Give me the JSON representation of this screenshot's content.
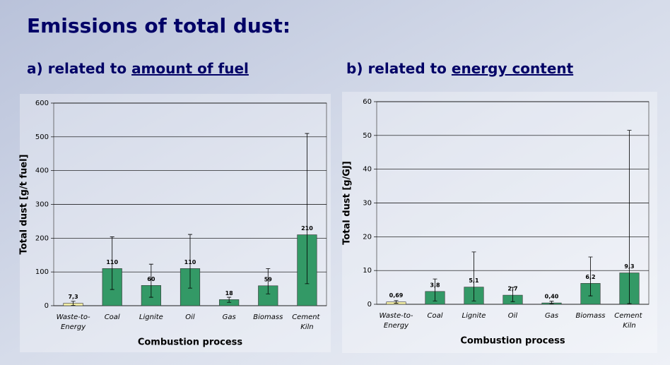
{
  "title": "Emissions of total dust:",
  "chart_data": [
    {
      "type": "bar",
      "label": "a)",
      "title": "related to",
      "title_underlined": "amount of fuel",
      "x_label": "Combustion process",
      "y_label": "Total dust [g/t fuel]",
      "categories": [
        "Waste-to-Energy",
        "Coal",
        "Lignite",
        "Oil",
        "Gas",
        "Biomass",
        "Cement Kiln"
      ],
      "series": [
        {
          "values": [
            7.3,
            110,
            60,
            110,
            18,
            59,
            210
          ],
          "value_labels": [
            "7,3",
            "110",
            "60",
            "110",
            "18",
            "59",
            "210"
          ],
          "colors": [
            "#f4f0a6",
            "#339966",
            "#339966",
            "#339966",
            "#339966",
            "#339966",
            "#339966"
          ],
          "error_low": [
            1,
            48,
            25,
            52,
            10,
            35,
            65
          ],
          "error_high": [
            13,
            204,
            123,
            211,
            25,
            110,
            510
          ]
        }
      ],
      "ylim": [
        0,
        600
      ],
      "yticks": [
        0,
        100,
        200,
        300,
        400,
        500,
        600
      ],
      "grid": true
    },
    {
      "type": "bar",
      "label": "b)",
      "title": "related to",
      "title_underlined": "energy content",
      "x_label": "Combustion process",
      "y_label": "Total dust [g/GJ]",
      "categories": [
        "Waste-to-Energy",
        "Coal",
        "Lignite",
        "Oil",
        "Gas",
        "Biomass",
        "Cement Kiln"
      ],
      "series": [
        {
          "values": [
            0.69,
            3.8,
            5.1,
            2.7,
            0.4,
            6.2,
            9.3
          ],
          "value_labels": [
            "0,69",
            "3,8",
            "5,1",
            "2,7",
            "0,40",
            "6,2",
            "9,3"
          ],
          "colors": [
            "#f4f0a6",
            "#339966",
            "#339966",
            "#339966",
            "#339966",
            "#339966",
            "#339966"
          ],
          "error_low": [
            0.3,
            1,
            1,
            0.8,
            0.2,
            2.5,
            0.2
          ],
          "error_high": [
            1.1,
            7.5,
            15.5,
            5,
            0.9,
            14,
            51.5
          ]
        }
      ],
      "ylim": [
        0,
        60
      ],
      "yticks": [
        0,
        10,
        20,
        30,
        40,
        50,
        60
      ],
      "grid": true
    }
  ]
}
